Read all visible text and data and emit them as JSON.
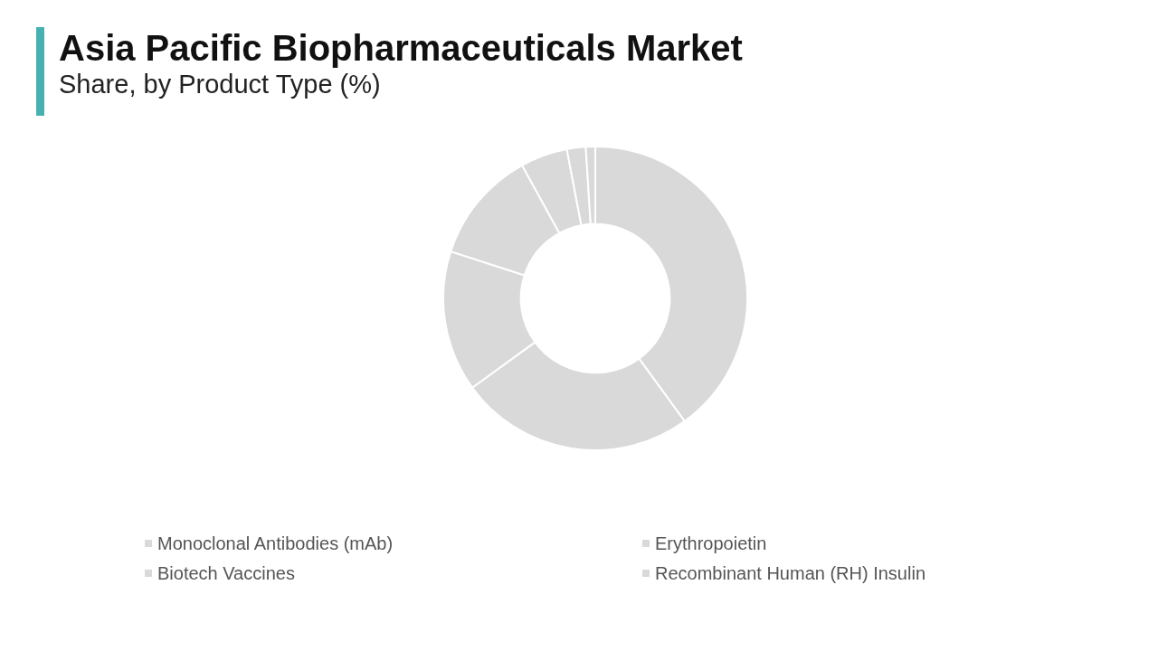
{
  "chart_data": {
    "type": "donut",
    "title": "Asia Pacific Biopharmaceuticals Market",
    "subtitle": "Share, by Product Type (%)",
    "categories": [
      "Monoclonal Antibodies (mAb)",
      "Erythropoietin",
      "Biotech Vaccines",
      "Recombinant Human (RH) Insulin",
      null,
      null,
      null
    ],
    "values": [
      40,
      25,
      15,
      12,
      5,
      2,
      1
    ],
    "colors": [
      "#d9d9d9",
      "#d9d9d9",
      "#d9d9d9",
      "#d9d9d9",
      "#d9d9d9",
      "#d9d9d9",
      "#d9d9d9"
    ],
    "legend": "bottom"
  }
}
